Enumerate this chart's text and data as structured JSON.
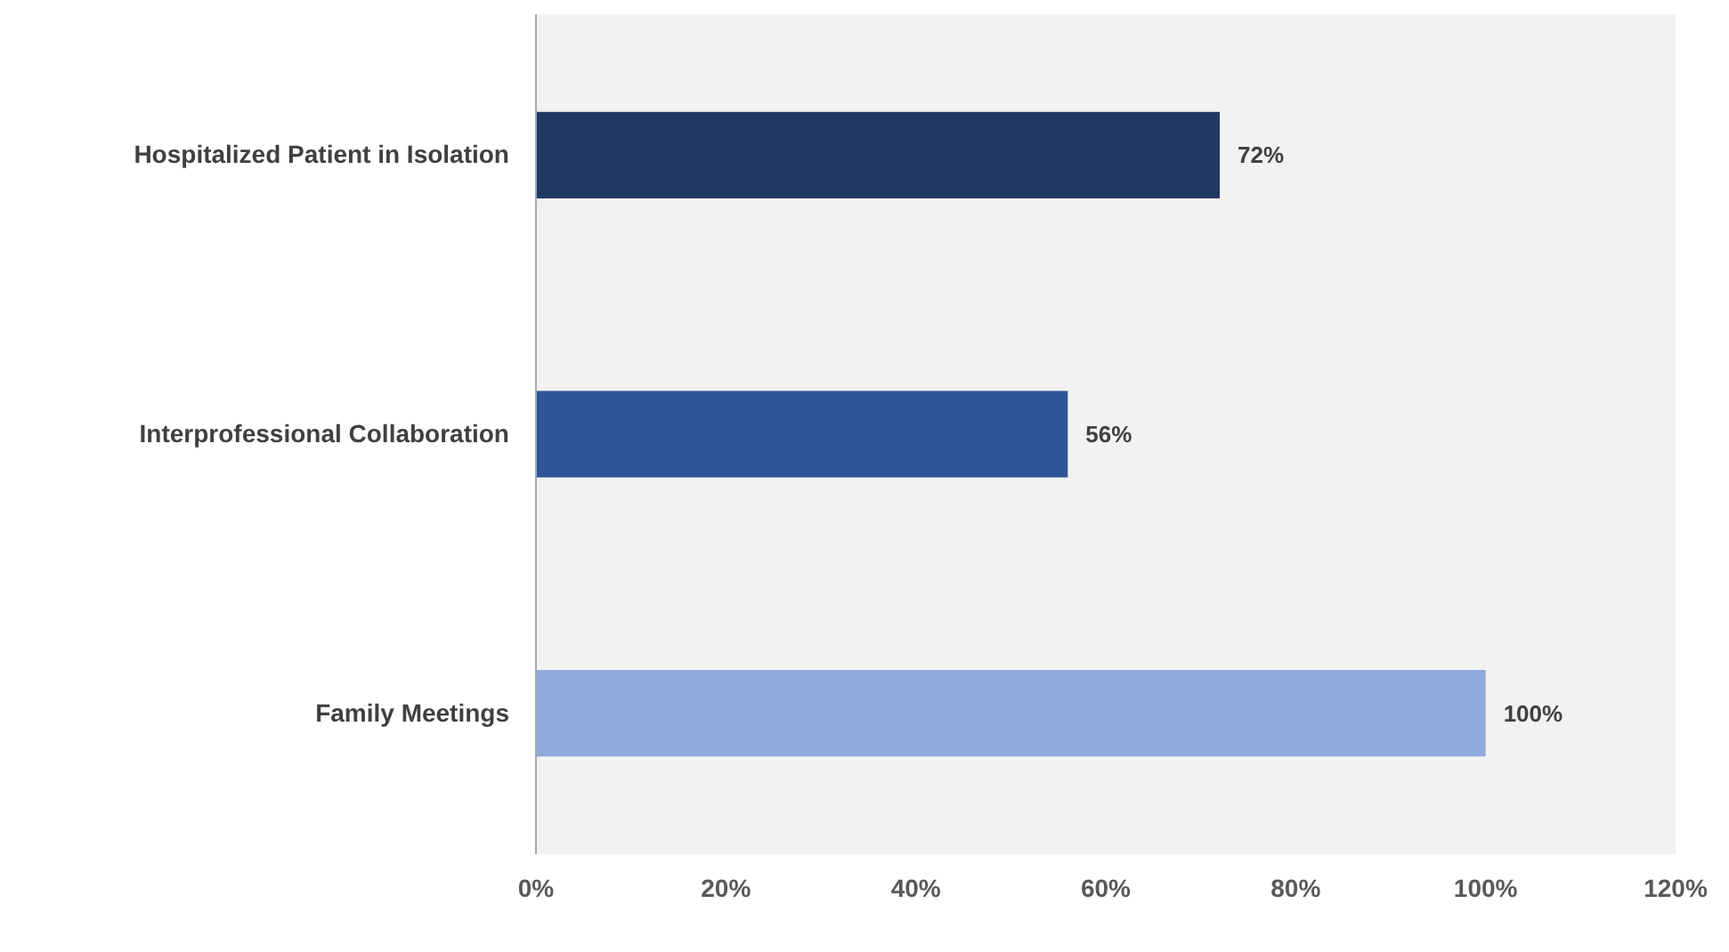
{
  "chart_data": {
    "type": "bar",
    "orientation": "horizontal",
    "categories": [
      "Hospitalized Patient in Isolation",
      "Interprofessional Collaboration",
      "Family Meetings"
    ],
    "values": [
      72,
      56,
      100
    ],
    "colors": [
      "#1f3864",
      "#2f5597",
      "#8faadc"
    ],
    "value_labels": [
      "72%",
      "56%",
      "100%"
    ],
    "xlim": [
      0,
      120
    ],
    "xticks": [
      {
        "value": 0,
        "label": "0%"
      },
      {
        "value": 20,
        "label": "20%"
      },
      {
        "value": 40,
        "label": "40%"
      },
      {
        "value": 60,
        "label": "60%"
      },
      {
        "value": 80,
        "label": "80%"
      },
      {
        "value": 100,
        "label": "100%"
      },
      {
        "value": 120,
        "label": "120%"
      }
    ],
    "stacked": false
  }
}
